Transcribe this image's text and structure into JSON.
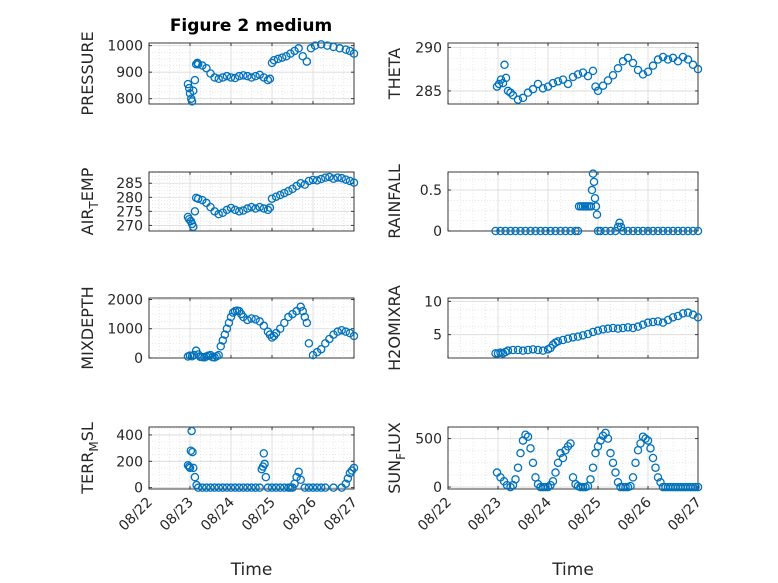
{
  "figure_title": "Figure 2 medium",
  "colors": {
    "series": "#0072bd",
    "axis": "#262626",
    "grid": "#d9d9d9"
  },
  "chart_data": [
    {
      "type": "scatter",
      "ylabel": "PRESSURE",
      "ylim": [
        780,
        1010
      ],
      "yticks": [
        800,
        900,
        1000
      ],
      "ytick_labels": [
        "800",
        "900",
        "1000"
      ],
      "title": "Figure 2 medium",
      "x": [
        22.95,
        22.98,
        23.0,
        23.03,
        23.05,
        23.08,
        23.12,
        23.15,
        23.18,
        23.2,
        23.3,
        23.4,
        23.5,
        23.6,
        23.7,
        23.8,
        23.9,
        24.0,
        24.1,
        24.2,
        24.3,
        24.4,
        24.5,
        24.6,
        24.7,
        24.8,
        24.9,
        24.95,
        25.0,
        25.05,
        25.15,
        25.25,
        25.35,
        25.45,
        25.55,
        25.65,
        25.75,
        25.85,
        25.95,
        26.05,
        26.2,
        26.35,
        26.5,
        26.65,
        26.8,
        26.9,
        27.0
      ],
      "y": [
        855,
        840,
        820,
        800,
        790,
        830,
        870,
        930,
        935,
        930,
        925,
        915,
        895,
        880,
        875,
        880,
        885,
        880,
        878,
        885,
        888,
        885,
        880,
        885,
        890,
        880,
        870,
        875,
        935,
        945,
        950,
        955,
        960,
        970,
        980,
        990,
        960,
        940,
        990,
        1000,
        1005,
        1000,
        995,
        990,
        985,
        980,
        970
      ]
    },
    {
      "type": "scatter",
      "ylabel": "THETA",
      "ylim": [
        283.5,
        290.5
      ],
      "yticks": [
        285,
        290
      ],
      "ytick_labels": [
        "285",
        "290"
      ],
      "x": [
        22.98,
        23.02,
        23.06,
        23.1,
        23.13,
        23.16,
        23.2,
        23.25,
        23.3,
        23.4,
        23.5,
        23.6,
        23.7,
        23.8,
        23.9,
        24.0,
        24.1,
        24.2,
        24.3,
        24.4,
        24.5,
        24.6,
        24.7,
        24.8,
        24.9,
        24.95,
        25.0,
        25.1,
        25.2,
        25.3,
        25.4,
        25.5,
        25.6,
        25.7,
        25.8,
        25.9,
        26.0,
        26.1,
        26.2,
        26.3,
        26.4,
        26.5,
        26.6,
        26.7,
        26.8,
        26.9,
        27.0
      ],
      "y": [
        285.5,
        285.8,
        286.3,
        285.9,
        288.0,
        286.5,
        285.0,
        284.8,
        284.5,
        284.0,
        284.2,
        284.8,
        285.2,
        285.8,
        285.3,
        285.5,
        285.9,
        286.1,
        286.3,
        285.8,
        286.6,
        286.9,
        287.1,
        286.7,
        287.3,
        285.5,
        285.0,
        285.6,
        286.2,
        286.8,
        287.6,
        288.4,
        288.8,
        288.2,
        287.4,
        286.9,
        287.2,
        287.9,
        288.6,
        288.9,
        288.6,
        288.8,
        288.4,
        288.9,
        288.6,
        288.0,
        287.5
      ]
    },
    {
      "type": "scatter",
      "ylabel": "AIR",
      "ylabel_sub": "T",
      "ylabel_rest": "EMP",
      "ylim": [
        268,
        289
      ],
      "yticks": [
        270,
        275,
        280,
        285
      ],
      "ytick_labels": [
        "270",
        "275",
        "280",
        "285"
      ],
      "x": [
        22.95,
        22.98,
        23.02,
        23.05,
        23.08,
        23.12,
        23.15,
        23.2,
        23.3,
        23.4,
        23.5,
        23.6,
        23.7,
        23.8,
        23.9,
        24.0,
        24.1,
        24.2,
        24.3,
        24.4,
        24.5,
        24.6,
        24.7,
        24.8,
        24.9,
        24.95,
        25.0,
        25.1,
        25.2,
        25.3,
        25.4,
        25.5,
        25.6,
        25.7,
        25.8,
        25.9,
        26.0,
        26.1,
        26.2,
        26.3,
        26.4,
        26.5,
        26.6,
        26.7,
        26.8,
        26.9,
        27.0
      ],
      "y": [
        273.0,
        272.2,
        271.5,
        270.5,
        269.5,
        275.0,
        279.8,
        279.5,
        279.0,
        278.0,
        276.5,
        275.0,
        274.0,
        274.5,
        275.5,
        276.2,
        275.5,
        275.0,
        275.3,
        276.0,
        276.5,
        276.0,
        276.5,
        276.0,
        275.5,
        276.3,
        279.5,
        280.2,
        280.8,
        281.5,
        282.2,
        283.0,
        284.0,
        285.0,
        284.5,
        285.8,
        286.2,
        286.0,
        286.5,
        287.0,
        287.2,
        286.6,
        287.0,
        286.8,
        286.3,
        285.8,
        285.2
      ]
    },
    {
      "type": "scatter",
      "ylabel": "RAINFALL",
      "ylim": [
        0,
        0.72
      ],
      "yticks": [
        0,
        0.5
      ],
      "ytick_labels": [
        "0",
        "0.5"
      ],
      "x": [
        22.95,
        23.05,
        23.15,
        23.25,
        23.35,
        23.45,
        23.55,
        23.65,
        23.75,
        23.85,
        23.95,
        24.05,
        24.15,
        24.25,
        24.35,
        24.45,
        24.55,
        24.6,
        24.62,
        24.66,
        24.7,
        24.74,
        24.78,
        24.82,
        24.86,
        24.88,
        24.9,
        24.92,
        24.94,
        24.96,
        24.98,
        25.0,
        25.05,
        25.15,
        25.25,
        25.35,
        25.4,
        25.43,
        25.46,
        25.5,
        25.6,
        25.7,
        25.8,
        25.9,
        26.0,
        26.1,
        26.2,
        26.3,
        26.4,
        26.5,
        26.6,
        26.7,
        26.8,
        26.9,
        27.0
      ],
      "y": [
        0,
        0,
        0,
        0,
        0,
        0,
        0,
        0,
        0,
        0,
        0,
        0,
        0,
        0,
        0,
        0,
        0,
        0,
        0.3,
        0.3,
        0.3,
        0.3,
        0.3,
        0.3,
        0.3,
        0.5,
        0.7,
        0.6,
        0.4,
        0.3,
        0.2,
        0,
        0,
        0,
        0,
        0,
        0.05,
        0.1,
        0.05,
        0,
        0,
        0,
        0,
        0,
        0,
        0,
        0,
        0,
        0,
        0,
        0,
        0,
        0,
        0,
        0
      ]
    },
    {
      "type": "scatter",
      "ylabel": "MIXDEPTH",
      "ylim": [
        0,
        2050
      ],
      "yticks": [
        0,
        1000,
        2000
      ],
      "ytick_labels": [
        "0",
        "1000",
        "2000"
      ],
      "x": [
        22.95,
        23.0,
        23.05,
        23.1,
        23.15,
        23.2,
        23.25,
        23.3,
        23.35,
        23.4,
        23.45,
        23.5,
        23.55,
        23.6,
        23.65,
        23.7,
        23.75,
        23.8,
        23.85,
        23.9,
        23.95,
        24.0,
        24.05,
        24.1,
        24.15,
        24.2,
        24.25,
        24.3,
        24.4,
        24.5,
        24.6,
        24.7,
        24.8,
        24.9,
        24.95,
        25.0,
        25.05,
        25.1,
        25.2,
        25.3,
        25.4,
        25.5,
        25.6,
        25.7,
        25.75,
        25.8,
        25.85,
        25.9,
        26.0,
        26.1,
        26.2,
        26.3,
        26.4,
        26.5,
        26.6,
        26.7,
        26.8,
        26.9,
        27.0
      ],
      "y": [
        50,
        80,
        60,
        100,
        250,
        120,
        40,
        30,
        20,
        50,
        80,
        100,
        30,
        20,
        60,
        100,
        400,
        600,
        800,
        1000,
        1200,
        1400,
        1550,
        1600,
        1620,
        1600,
        1500,
        1400,
        1300,
        1350,
        1320,
        1250,
        1100,
        900,
        800,
        700,
        750,
        850,
        1000,
        1200,
        1400,
        1500,
        1600,
        1750,
        1600,
        1400,
        1200,
        500,
        100,
        200,
        300,
        500,
        650,
        800,
        900,
        950,
        900,
        850,
        750
      ]
    },
    {
      "type": "scatter",
      "ylabel": "H2OMIXRA",
      "ylim": [
        1.5,
        10.5
      ],
      "yticks": [
        5,
        10
      ],
      "ytick_labels": [
        "5",
        "10"
      ],
      "x": [
        22.95,
        23.0,
        23.05,
        23.1,
        23.15,
        23.2,
        23.3,
        23.4,
        23.5,
        23.6,
        23.7,
        23.8,
        23.9,
        24.0,
        24.05,
        24.1,
        24.15,
        24.2,
        24.3,
        24.4,
        24.5,
        24.6,
        24.7,
        24.8,
        24.9,
        25.0,
        25.1,
        25.2,
        25.3,
        25.4,
        25.5,
        25.6,
        25.7,
        25.8,
        25.9,
        26.0,
        26.1,
        26.2,
        26.3,
        26.4,
        26.5,
        26.6,
        26.7,
        26.8,
        26.9,
        27.0
      ],
      "y": [
        2.2,
        2.2,
        2.3,
        2.2,
        2.4,
        2.6,
        2.7,
        2.7,
        2.6,
        2.7,
        2.8,
        2.7,
        2.6,
        2.8,
        3.0,
        3.5,
        3.8,
        4.0,
        4.2,
        4.4,
        4.6,
        4.7,
        4.9,
        5.1,
        5.4,
        5.6,
        5.8,
        5.9,
        6.0,
        5.9,
        6.0,
        6.1,
        6.0,
        6.2,
        6.5,
        6.8,
        6.9,
        7.0,
        6.8,
        7.2,
        7.6,
        7.8,
        8.2,
        8.3,
        8.0,
        7.6
      ]
    },
    {
      "type": "scatter",
      "ylabel": "TERR",
      "ylabel_sub": "M",
      "ylabel_rest": "SL",
      "ylim": [
        -10,
        460
      ],
      "yticks": [
        0,
        200,
        400
      ],
      "ytick_labels": [
        "0",
        "200",
        "400"
      ],
      "x": [
        22.95,
        22.98,
        23.0,
        23.02,
        23.04,
        23.06,
        23.08,
        23.12,
        23.16,
        23.2,
        23.3,
        23.4,
        23.5,
        23.6,
        23.7,
        23.8,
        23.9,
        24.0,
        24.1,
        24.2,
        24.3,
        24.4,
        24.5,
        24.6,
        24.7,
        24.75,
        24.78,
        24.8,
        24.82,
        24.85,
        24.9,
        25.0,
        25.1,
        25.2,
        25.3,
        25.4,
        25.45,
        25.5,
        25.55,
        25.6,
        25.65,
        25.7,
        25.8,
        25.9,
        26.0,
        26.1,
        26.2,
        26.3,
        26.5,
        26.7,
        26.8,
        26.85,
        26.9,
        26.95,
        27.0
      ],
      "y": [
        170,
        160,
        150,
        280,
        430,
        270,
        150,
        80,
        20,
        0,
        0,
        0,
        0,
        0,
        0,
        0,
        0,
        0,
        0,
        0,
        0,
        0,
        0,
        0,
        0,
        140,
        160,
        260,
        180,
        80,
        0,
        0,
        0,
        0,
        0,
        0,
        0,
        0,
        30,
        80,
        120,
        60,
        0,
        0,
        0,
        0,
        0,
        0,
        0,
        0,
        30,
        70,
        110,
        130,
        150
      ]
    },
    {
      "type": "scatter",
      "ylabel": "SUN",
      "ylabel_sub": "F",
      "ylabel_rest": "LUX",
      "ylim": [
        -20,
        620
      ],
      "yticks": [
        0,
        500
      ],
      "ytick_labels": [
        "0",
        "500"
      ],
      "x": [
        22.98,
        23.05,
        23.12,
        23.18,
        23.25,
        23.3,
        23.35,
        23.4,
        23.45,
        23.5,
        23.55,
        23.6,
        23.65,
        23.7,
        23.75,
        23.8,
        23.85,
        23.9,
        23.95,
        24.0,
        24.05,
        24.1,
        24.15,
        24.2,
        24.25,
        24.3,
        24.35,
        24.4,
        24.45,
        24.5,
        24.55,
        24.6,
        24.65,
        24.7,
        24.75,
        24.8,
        24.85,
        24.9,
        24.95,
        25.0,
        25.05,
        25.1,
        25.15,
        25.2,
        25.25,
        25.3,
        25.35,
        25.4,
        25.45,
        25.5,
        25.55,
        25.6,
        25.65,
        25.7,
        25.75,
        25.8,
        25.85,
        25.9,
        25.95,
        26.0,
        26.05,
        26.1,
        26.15,
        26.2,
        26.25,
        26.3,
        26.35,
        26.4,
        26.45,
        26.5,
        26.55,
        26.6,
        26.65,
        26.7,
        26.75,
        26.8,
        26.85,
        26.9,
        26.95,
        27.0
      ],
      "y": [
        150,
        100,
        60,
        20,
        0,
        20,
        80,
        200,
        350,
        480,
        540,
        520,
        400,
        250,
        100,
        30,
        0,
        0,
        0,
        0,
        20,
        60,
        150,
        250,
        350,
        300,
        380,
        420,
        450,
        100,
        30,
        10,
        0,
        0,
        0,
        10,
        80,
        200,
        350,
        420,
        480,
        530,
        560,
        500,
        350,
        250,
        150,
        50,
        0,
        0,
        0,
        0,
        10,
        100,
        250,
        380,
        450,
        520,
        500,
        480,
        400,
        300,
        200,
        100,
        50,
        0,
        0,
        0,
        0,
        0,
        0,
        0,
        0,
        0,
        0,
        0,
        0,
        0,
        0,
        0
      ]
    }
  ],
  "x_axis": {
    "xlim": [
      22,
      27
    ],
    "ticks": [
      22,
      23,
      24,
      25,
      26,
      27
    ],
    "tick_labels": [
      "08/22",
      "08/23",
      "08/24",
      "08/25",
      "08/26",
      "08/27"
    ],
    "xlabel": "Time"
  }
}
